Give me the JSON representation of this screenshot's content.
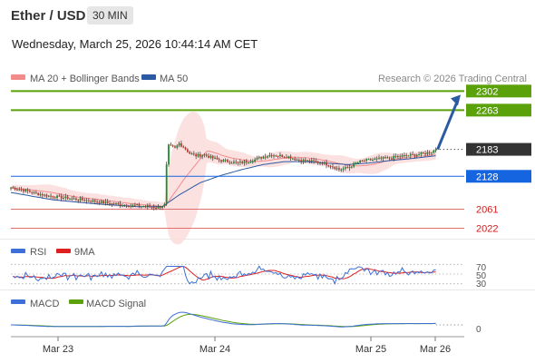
{
  "header": {
    "title": "Ether / USD",
    "interval": "30 MIN",
    "datetime": "Wednesday, March 25, 2026 10:44:14 AM CET"
  },
  "colors": {
    "up_candle": "#1f8a2e",
    "down_candle": "#c0392b",
    "ma20": "#f28b8b",
    "bollinger_fill": "#fbdcdc",
    "ma50": "#2b5aa3",
    "green_level": "#5aa10a",
    "blue_level": "#1565e0",
    "red_level": "#e07070",
    "current_label": "#333333",
    "rsi": "#3d6fd6",
    "rsi_ma": "#e02020",
    "macd": "#3d6fd6",
    "macd_signal": "#5aa10a",
    "arrow": "#2b5aa3"
  },
  "chart_data": [
    {
      "type": "candlestick",
      "legend": [
        "MA 20 + Bollinger Bands",
        "MA 50"
      ],
      "source": "Research © 2026 Trading Central",
      "x_ticks": [
        "Mar 23",
        "Mar 24",
        "Mar 25",
        "Mar 26"
      ],
      "ylim": [
        2010,
        2310
      ],
      "current_price": "2183",
      "levels": [
        {
          "value": 2302,
          "label": "2302",
          "kind": "resistance"
        },
        {
          "value": 2263,
          "label": "2263",
          "kind": "resistance"
        },
        {
          "value": 2128,
          "label": "2128",
          "kind": "pivot"
        },
        {
          "value": 2061,
          "label": "2061",
          "kind": "support"
        },
        {
          "value": 2022,
          "label": "2022",
          "kind": "support"
        }
      ],
      "close_path": [
        [
          0,
          2105
        ],
        [
          6,
          2100
        ],
        [
          12,
          2093
        ],
        [
          18,
          2088
        ],
        [
          24,
          2085
        ],
        [
          30,
          2082
        ],
        [
          36,
          2079
        ],
        [
          42,
          2076
        ],
        [
          48,
          2072
        ],
        [
          54,
          2070
        ],
        [
          60,
          2068
        ],
        [
          66,
          2066
        ],
        [
          70,
          2064
        ],
        [
          73,
          2070
        ],
        [
          74,
          2150
        ],
        [
          75,
          2190
        ],
        [
          78,
          2185
        ],
        [
          80,
          2195
        ],
        [
          82,
          2188
        ],
        [
          85,
          2175
        ],
        [
          88,
          2170
        ],
        [
          92,
          2172
        ],
        [
          96,
          2165
        ],
        [
          100,
          2160
        ],
        [
          104,
          2158
        ],
        [
          108,
          2155
        ],
        [
          112,
          2158
        ],
        [
          116,
          2162
        ],
        [
          120,
          2168
        ],
        [
          124,
          2172
        ],
        [
          128,
          2170
        ],
        [
          132,
          2168
        ],
        [
          136,
          2162
        ],
        [
          140,
          2160
        ],
        [
          144,
          2158
        ],
        [
          148,
          2156
        ],
        [
          152,
          2150
        ],
        [
          156,
          2142
        ],
        [
          160,
          2145
        ],
        [
          164,
          2155
        ],
        [
          168,
          2160
        ],
        [
          172,
          2162
        ],
        [
          176,
          2164
        ],
        [
          180,
          2165
        ],
        [
          184,
          2168
        ],
        [
          188,
          2170
        ],
        [
          192,
          2172
        ],
        [
          196,
          2174
        ],
        [
          200,
          2178
        ],
        [
          202,
          2183
        ]
      ],
      "ma50_path": [
        [
          0,
          2095
        ],
        [
          20,
          2080
        ],
        [
          40,
          2072
        ],
        [
          60,
          2066
        ],
        [
          72,
          2066
        ],
        [
          80,
          2090
        ],
        [
          90,
          2115
        ],
        [
          100,
          2130
        ],
        [
          110,
          2142
        ],
        [
          120,
          2152
        ],
        [
          130,
          2158
        ],
        [
          140,
          2158
        ],
        [
          150,
          2155
        ],
        [
          160,
          2152
        ],
        [
          170,
          2155
        ],
        [
          180,
          2160
        ],
        [
          190,
          2164
        ],
        [
          202,
          2170
        ]
      ]
    },
    {
      "type": "line",
      "legend": [
        "RSI",
        "9MA"
      ],
      "y_ticks": [
        "70",
        "50",
        "30"
      ],
      "ylim": [
        20,
        80
      ]
    },
    {
      "type": "line",
      "legend": [
        "MACD",
        "MACD Signal"
      ],
      "y_ticks": [
        "0"
      ]
    }
  ]
}
